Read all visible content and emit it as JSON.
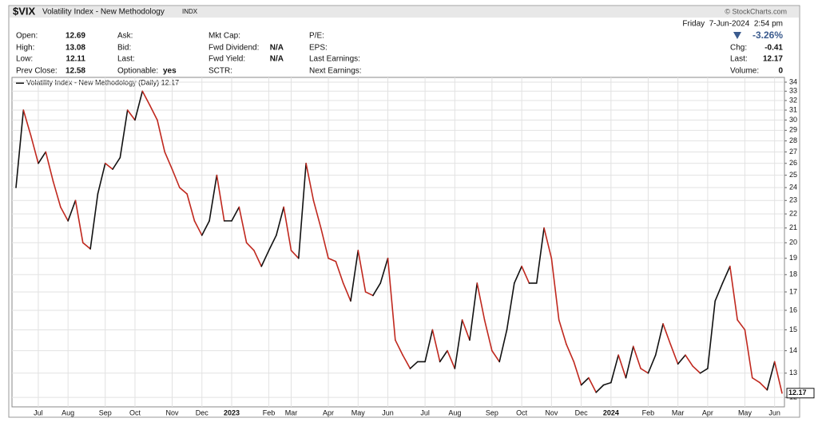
{
  "chart_data": {
    "type": "line",
    "symbol": "$VIX",
    "name": "Volatility Index - New Methodology",
    "exchange": "INDX",
    "source": "© StockCharts.com",
    "date": "Friday  7-Jun-2024  2:54 pm",
    "change_pct": "-3.26%",
    "quote": {
      "columns": [
        [
          {
            "label": "Open:",
            "value": 12.69
          },
          {
            "label": "High:",
            "value": 13.08
          },
          {
            "label": "Low:",
            "value": 12.11
          },
          {
            "label": "Prev Close:",
            "value": 12.58
          }
        ],
        [
          {
            "label": "Ask:"
          },
          {
            "label": "Bid:"
          },
          {
            "label": "Last:"
          },
          {
            "label": "Optionable:",
            "value": "yes"
          }
        ],
        [
          {
            "label": "Mkt Cap:"
          },
          {
            "label": "Fwd Dividend:",
            "value": "N/A"
          },
          {
            "label": "Fwd Yield:",
            "value": "N/A"
          },
          {
            "label": "SCTR:"
          }
        ],
        [
          {
            "label": "P/E:"
          },
          {
            "label": "EPS:"
          },
          {
            "label": "Last Earnings:"
          },
          {
            "label": "Next Earnings:"
          }
        ]
      ],
      "right": [
        {
          "label": "Chg:",
          "value": -0.41
        },
        {
          "label": "Last:",
          "value": 12.17
        },
        {
          "label": "Volume:",
          "value": 0
        }
      ]
    },
    "categories": [
      null,
      null,
      null,
      "Jul",
      null,
      null,
      null,
      "Aug",
      null,
      null,
      null,
      null,
      "Sep",
      null,
      null,
      null,
      "Oct",
      null,
      null,
      null,
      null,
      "Nov",
      null,
      null,
      null,
      "Dec",
      null,
      null,
      null,
      "2023",
      null,
      null,
      null,
      null,
      "Feb",
      null,
      null,
      "Mar",
      null,
      null,
      null,
      null,
      "Apr",
      null,
      null,
      null,
      "May",
      null,
      null,
      null,
      "Jun",
      null,
      null,
      null,
      null,
      "Jul",
      null,
      null,
      null,
      "Aug",
      null,
      null,
      null,
      null,
      "Sep",
      null,
      null,
      null,
      "Oct",
      null,
      null,
      null,
      "Nov",
      null,
      null,
      null,
      "Dec",
      null,
      null,
      null,
      "2024",
      null,
      null,
      null,
      null,
      "Feb",
      null,
      null,
      null,
      "Mar",
      null,
      null,
      null,
      "Apr",
      null,
      null,
      null,
      null,
      "May",
      null,
      null,
      null,
      "Jun",
      null
    ],
    "series": [
      {
        "name": "Volatility Index - New Methodology (Daily) 12.17",
        "color": "#c0281e",
        "up_color": "#111111",
        "values": [
          24,
          31,
          28.5,
          26,
          27,
          24.5,
          22.5,
          21.5,
          23,
          20,
          19.6,
          23.5,
          26,
          25.5,
          26.5,
          31,
          30,
          33,
          31.5,
          30,
          27,
          25.5,
          24,
          23.5,
          21.5,
          20.5,
          21.5,
          25,
          21.5,
          21.5,
          22.5,
          20,
          19.5,
          18.5,
          19.5,
          20.5,
          22.5,
          19.5,
          19,
          26,
          23,
          21,
          19,
          18.8,
          17.5,
          16.5,
          19.5,
          17,
          16.8,
          17.5,
          19,
          14.5,
          13.8,
          13.2,
          13.5,
          13.5,
          15,
          13.5,
          14,
          13.2,
          15.5,
          14.5,
          17.5,
          15.5,
          14,
          13.5,
          15,
          17.5,
          18.5,
          17.5,
          17.5,
          21,
          19,
          15.5,
          14.3,
          13.5,
          12.5,
          12.8,
          12.2,
          12.5,
          12.6,
          13.8,
          12.8,
          14.2,
          13.2,
          13,
          13.8,
          15.3,
          14.3,
          13.4,
          13.8,
          13.3,
          13,
          13.2,
          16.5,
          17.5,
          18.5,
          15.5,
          15,
          12.8,
          12.6,
          12.3,
          13.5,
          12.17
        ]
      }
    ],
    "ylim": [
      11.63,
      34.54
    ],
    "yticks": [
      12,
      13,
      14,
      15,
      16,
      17,
      18,
      19,
      20,
      21,
      22,
      23,
      24,
      25,
      26,
      27,
      28,
      29,
      30,
      31,
      32,
      33,
      34
    ],
    "log_scale": true,
    "grid": true
  }
}
